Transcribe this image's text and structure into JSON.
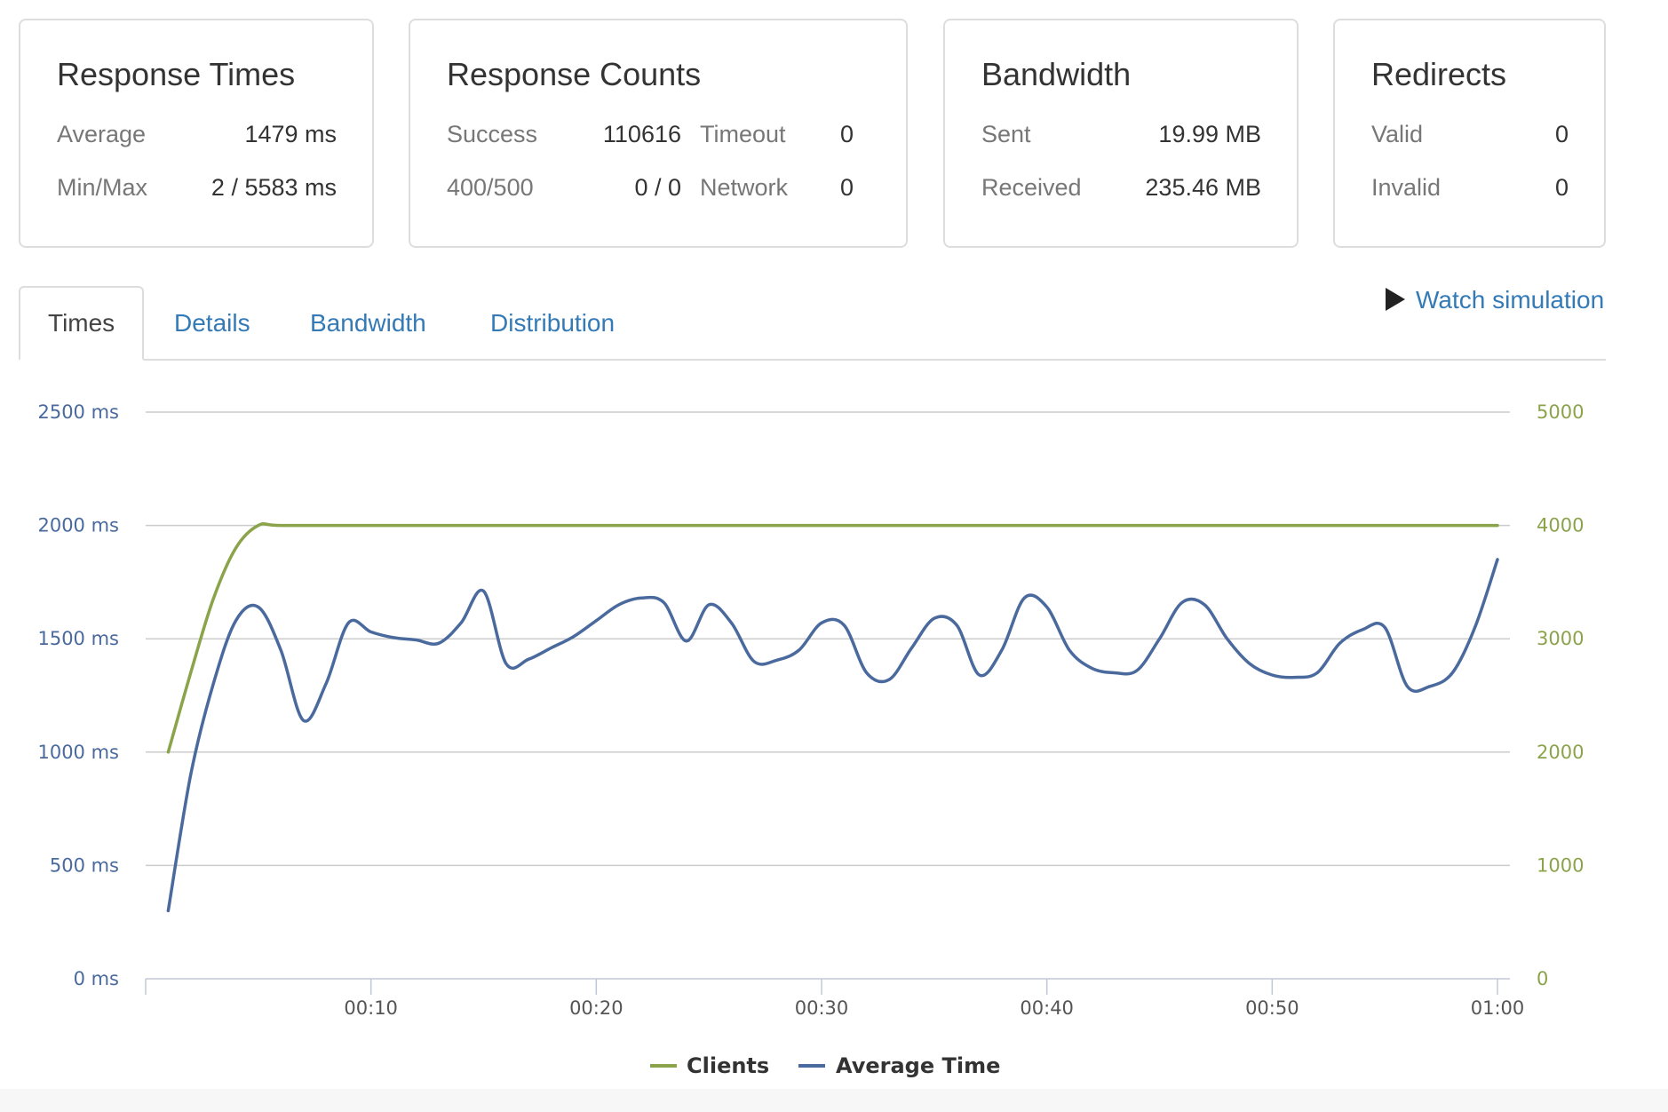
{
  "cards": {
    "response_times": {
      "title": "Response Times",
      "average_label": "Average",
      "average_value": "1479 ms",
      "minmax_label": "Min/Max",
      "minmax_value": "2 / 5583 ms"
    },
    "response_counts": {
      "title": "Response Counts",
      "success_label": "Success",
      "success_value": "110616",
      "timeout_label": "Timeout",
      "timeout_value": "0",
      "errors_label": "400/500",
      "errors_value": "0 / 0",
      "network_label": "Network",
      "network_value": "0"
    },
    "bandwidth": {
      "title": "Bandwidth",
      "sent_label": "Sent",
      "sent_value": "19.99 MB",
      "received_label": "Received",
      "received_value": "235.46 MB"
    },
    "redirects": {
      "title": "Redirects",
      "valid_label": "Valid",
      "valid_value": "0",
      "invalid_label": "Invalid",
      "invalid_value": "0"
    }
  },
  "tabs": [
    {
      "label": "Times",
      "active": true
    },
    {
      "label": "Details",
      "active": false
    },
    {
      "label": "Bandwidth",
      "active": false
    },
    {
      "label": "Distribution",
      "active": false
    }
  ],
  "watch_simulation": {
    "label": "Watch simulation",
    "icon": "play-icon"
  },
  "colors": {
    "clients": "#8ba34a",
    "average_time": "#4a6a9e",
    "grid": "#cccccc",
    "link": "#337ab7"
  },
  "chart_data": {
    "type": "line",
    "x_ticks": [
      "00:10",
      "00:20",
      "00:30",
      "00:40",
      "00:50",
      "01:00"
    ],
    "x_tick_values": [
      10,
      20,
      30,
      40,
      50,
      60
    ],
    "xlim": [
      0,
      60
    ],
    "y_left": {
      "ticks": [
        "0 ms",
        "500 ms",
        "1000 ms",
        "1500 ms",
        "2000 ms",
        "2500 ms"
      ],
      "tick_values": [
        0,
        500,
        1000,
        1500,
        2000,
        2500
      ],
      "ylim": [
        0,
        2500
      ]
    },
    "y_right": {
      "ticks": [
        "0",
        "1000",
        "2000",
        "3000",
        "4000",
        "5000"
      ],
      "tick_values": [
        0,
        1000,
        2000,
        3000,
        4000,
        5000
      ],
      "ylim": [
        0,
        5000
      ]
    },
    "legend": [
      "Clients",
      "Average Time"
    ],
    "series": [
      {
        "name": "Clients",
        "axis": "right",
        "x": [
          1,
          2,
          3,
          4,
          5,
          6,
          10,
          20,
          30,
          40,
          50,
          60
        ],
        "values": [
          2000,
          2700,
          3350,
          3800,
          4000,
          4000,
          4000,
          4000,
          4000,
          4000,
          4000,
          4000
        ]
      },
      {
        "name": "Average Time",
        "axis": "left",
        "x": [
          1,
          2,
          3,
          4,
          5,
          6,
          7,
          8,
          9,
          10,
          11,
          12,
          13,
          14,
          15,
          16,
          17,
          18,
          19,
          20,
          21,
          22,
          23,
          24,
          25,
          26,
          27,
          28,
          29,
          30,
          31,
          32,
          33,
          34,
          35,
          36,
          37,
          38,
          39,
          40,
          41,
          42,
          43,
          44,
          45,
          46,
          47,
          48,
          49,
          50,
          51,
          52,
          53,
          54,
          55,
          56,
          57,
          58,
          59,
          60
        ],
        "values": [
          300,
          900,
          1300,
          1580,
          1640,
          1450,
          1140,
          1300,
          1570,
          1530,
          1505,
          1495,
          1480,
          1570,
          1710,
          1390,
          1410,
          1460,
          1510,
          1580,
          1650,
          1680,
          1660,
          1490,
          1650,
          1570,
          1400,
          1405,
          1450,
          1570,
          1560,
          1350,
          1320,
          1460,
          1590,
          1560,
          1340,
          1450,
          1680,
          1640,
          1450,
          1370,
          1350,
          1360,
          1500,
          1660,
          1650,
          1500,
          1390,
          1340,
          1330,
          1350,
          1480,
          1540,
          1550,
          1290,
          1290,
          1350,
          1550,
          1850
        ]
      }
    ]
  }
}
